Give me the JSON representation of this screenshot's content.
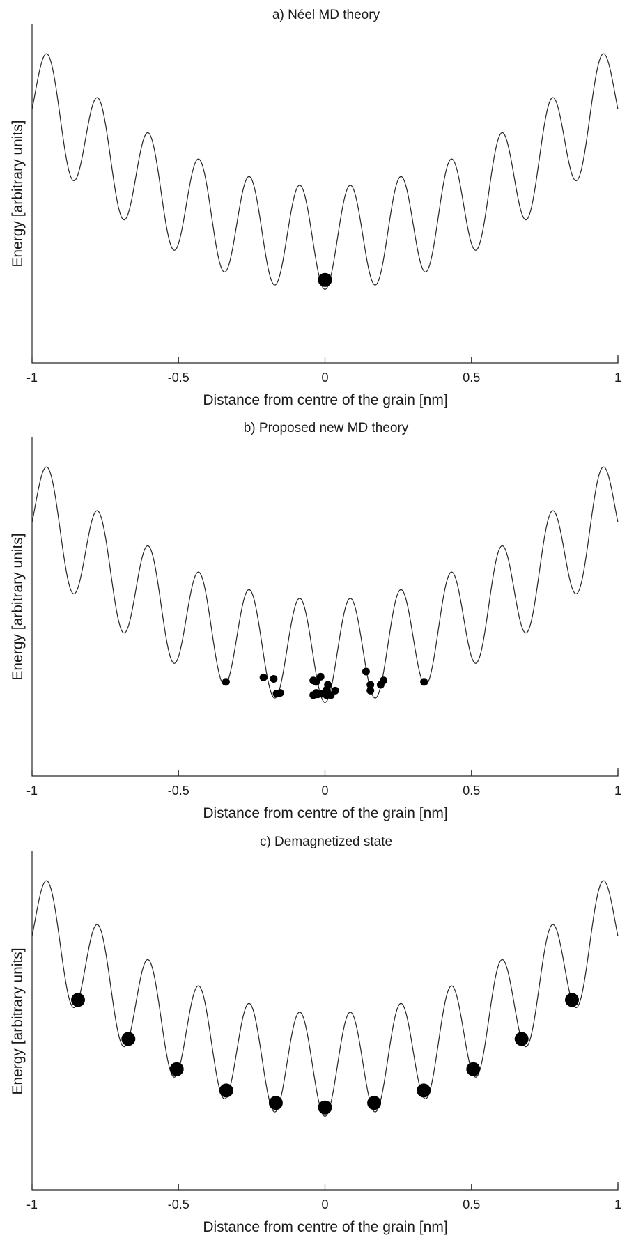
{
  "chart_data": [
    {
      "type": "line",
      "title": "a) Néel MD theory",
      "xlabel": "Distance from centre of the grain [nm]",
      "ylabel": "Energy [arbitrary units]",
      "xlim": [
        -1,
        1
      ],
      "xticks": [
        "-1",
        "-0.5",
        "0",
        "0.5",
        "1"
      ],
      "grid": false,
      "series": [
        {
          "kind": "curve",
          "x_range": [
            -1,
            1
          ],
          "energy": "x^2 - 0.35*cos(36.5*x) (arbitrary units)"
        },
        {
          "kind": "particles",
          "size": "large",
          "points": [
            {
              "x": 0.0,
              "y": -0.286
            }
          ]
        }
      ]
    },
    {
      "type": "line",
      "title": "b) Proposed new MD theory",
      "xlabel": "Distance from centre of the grain [nm]",
      "ylabel": "Energy [arbitrary units]",
      "xlim": [
        -1,
        1
      ],
      "xticks": [
        "-1",
        "-0.5",
        "0",
        "0.5",
        "1"
      ],
      "grid": false,
      "series": [
        {
          "kind": "curve",
          "x_range": [
            -1,
            1
          ],
          "energy": "x^2 - 0.35*cos(36.5*x) (arbitrary units)"
        },
        {
          "kind": "particles",
          "size": "small",
          "points": [
            {
              "x": -0.338,
              "y": -0.21
            },
            {
              "x": -0.21,
              "y": -0.18
            },
            {
              "x": -0.175,
              "y": -0.19
            },
            {
              "x": -0.165,
              "y": -0.29
            },
            {
              "x": -0.153,
              "y": -0.285
            },
            {
              "x": -0.04,
              "y": -0.2
            },
            {
              "x": -0.03,
              "y": -0.21
            },
            {
              "x": -0.015,
              "y": -0.175
            },
            {
              "x": 0.01,
              "y": -0.23
            },
            {
              "x": 0.005,
              "y": -0.265
            },
            {
              "x": -0.03,
              "y": -0.285
            },
            {
              "x": -0.04,
              "y": -0.3
            },
            {
              "x": -0.025,
              "y": -0.295
            },
            {
              "x": -0.01,
              "y": -0.29
            },
            {
              "x": 0.005,
              "y": -0.3
            },
            {
              "x": 0.02,
              "y": -0.3
            },
            {
              "x": 0.035,
              "y": -0.27
            },
            {
              "x": 0.14,
              "y": -0.14
            },
            {
              "x": 0.155,
              "y": -0.23
            },
            {
              "x": 0.155,
              "y": -0.27
            },
            {
              "x": 0.19,
              "y": -0.23
            },
            {
              "x": 0.2,
              "y": -0.2
            },
            {
              "x": 0.338,
              "y": -0.21
            }
          ]
        }
      ]
    },
    {
      "type": "line",
      "title": "c) Demagnetized state",
      "xlabel": "Distance from centre of the grain [nm]",
      "ylabel": "Energy [arbitrary units]",
      "xlim": [
        -1,
        1
      ],
      "xticks": [
        "-1",
        "-0.5",
        "0",
        "0.5",
        "1"
      ],
      "grid": false,
      "series": [
        {
          "kind": "curve",
          "x_range": [
            -1,
            1
          ],
          "energy": "x^2 - 0.35*cos(36.5*x) (arbitrary units)"
        },
        {
          "kind": "particles",
          "size": "large",
          "points": [
            {
              "x": -0.843,
              "y": 0.44
            },
            {
              "x": -0.671,
              "y": 0.175
            },
            {
              "x": -0.506,
              "y": -0.03
            },
            {
              "x": -0.337,
              "y": -0.175
            },
            {
              "x": -0.168,
              "y": -0.26
            },
            {
              "x": 0.0,
              "y": -0.29
            },
            {
              "x": 0.168,
              "y": -0.26
            },
            {
              "x": 0.337,
              "y": -0.175
            },
            {
              "x": 0.506,
              "y": -0.03
            },
            {
              "x": 0.671,
              "y": 0.175
            },
            {
              "x": 0.843,
              "y": 0.44
            }
          ]
        }
      ]
    }
  ]
}
